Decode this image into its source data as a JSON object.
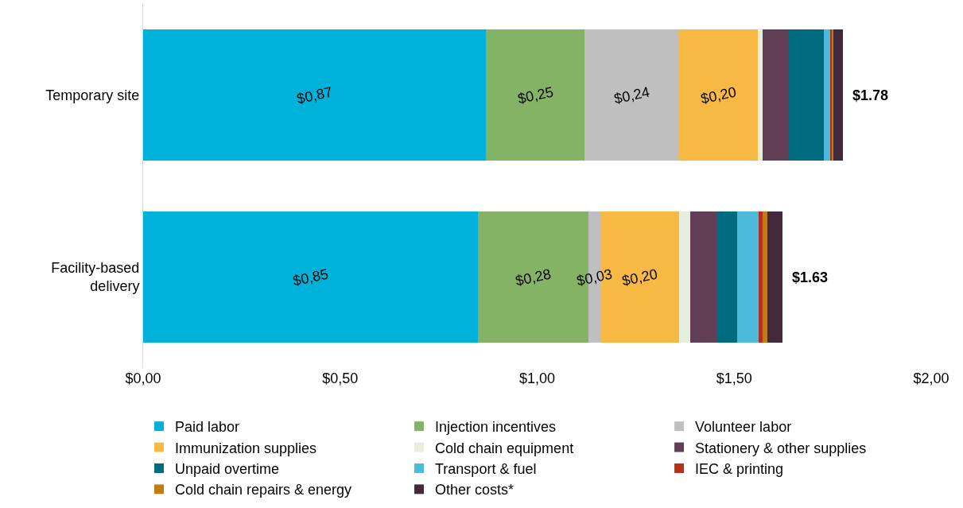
{
  "chart_data": {
    "type": "bar",
    "orientation": "horizontal",
    "stacked": true,
    "categories": [
      "Temporary site",
      "Facility-based delivery"
    ],
    "series": [
      {
        "name": "Paid labor",
        "color": "#00b2d9",
        "values": [
          0.87,
          0.85
        ],
        "value_labels": [
          "$0,87",
          "$0,85"
        ]
      },
      {
        "name": "Injection incentives",
        "color": "#85b366",
        "values": [
          0.25,
          0.28
        ],
        "value_labels": [
          "$0,25",
          "$0,28"
        ]
      },
      {
        "name": "Volunteer labor",
        "color": "#bfbfbf",
        "values": [
          0.24,
          0.03
        ],
        "value_labels": [
          "$0,24",
          "$0,03"
        ]
      },
      {
        "name": "Immunization supplies",
        "color": "#f8b944",
        "values": [
          0.2,
          0.2
        ],
        "value_labels": [
          "$0,20",
          "$0,20"
        ]
      },
      {
        "name": "Cold chain equipment",
        "color": "#e6eee0",
        "values": [
          0.012,
          0.028
        ]
      },
      {
        "name": "Stationery & other supplies",
        "color": "#623e56",
        "values": [
          0.065,
          0.067
        ]
      },
      {
        "name": "Unpaid overtime",
        "color": "#006a7e",
        "values": [
          0.09,
          0.052
        ]
      },
      {
        "name": "Transport & fuel",
        "color": "#4dbadb",
        "values": [
          0.018,
          0.056
        ]
      },
      {
        "name": "IEC & printing",
        "color": "#b3301d",
        "values": [
          0.004,
          0.01
        ]
      },
      {
        "name": "Cold chain repairs & energy",
        "color": "#bf7d12",
        "values": [
          0.002,
          0.012
        ]
      },
      {
        "name": "Other costs*",
        "color": "#42293c",
        "values": [
          0.024,
          0.038
        ]
      }
    ],
    "totals": [
      "$1.78",
      "$1.63"
    ],
    "xlim": [
      0,
      2
    ],
    "xticks": [
      {
        "value": 0,
        "label": "$0,00"
      },
      {
        "value": 0.5,
        "label": "$0,50"
      },
      {
        "value": 1,
        "label": "$1,00"
      },
      {
        "value": 1.5,
        "label": "$1,50"
      },
      {
        "value": 2,
        "label": "$2,00"
      }
    ],
    "legend": "bottom"
  }
}
